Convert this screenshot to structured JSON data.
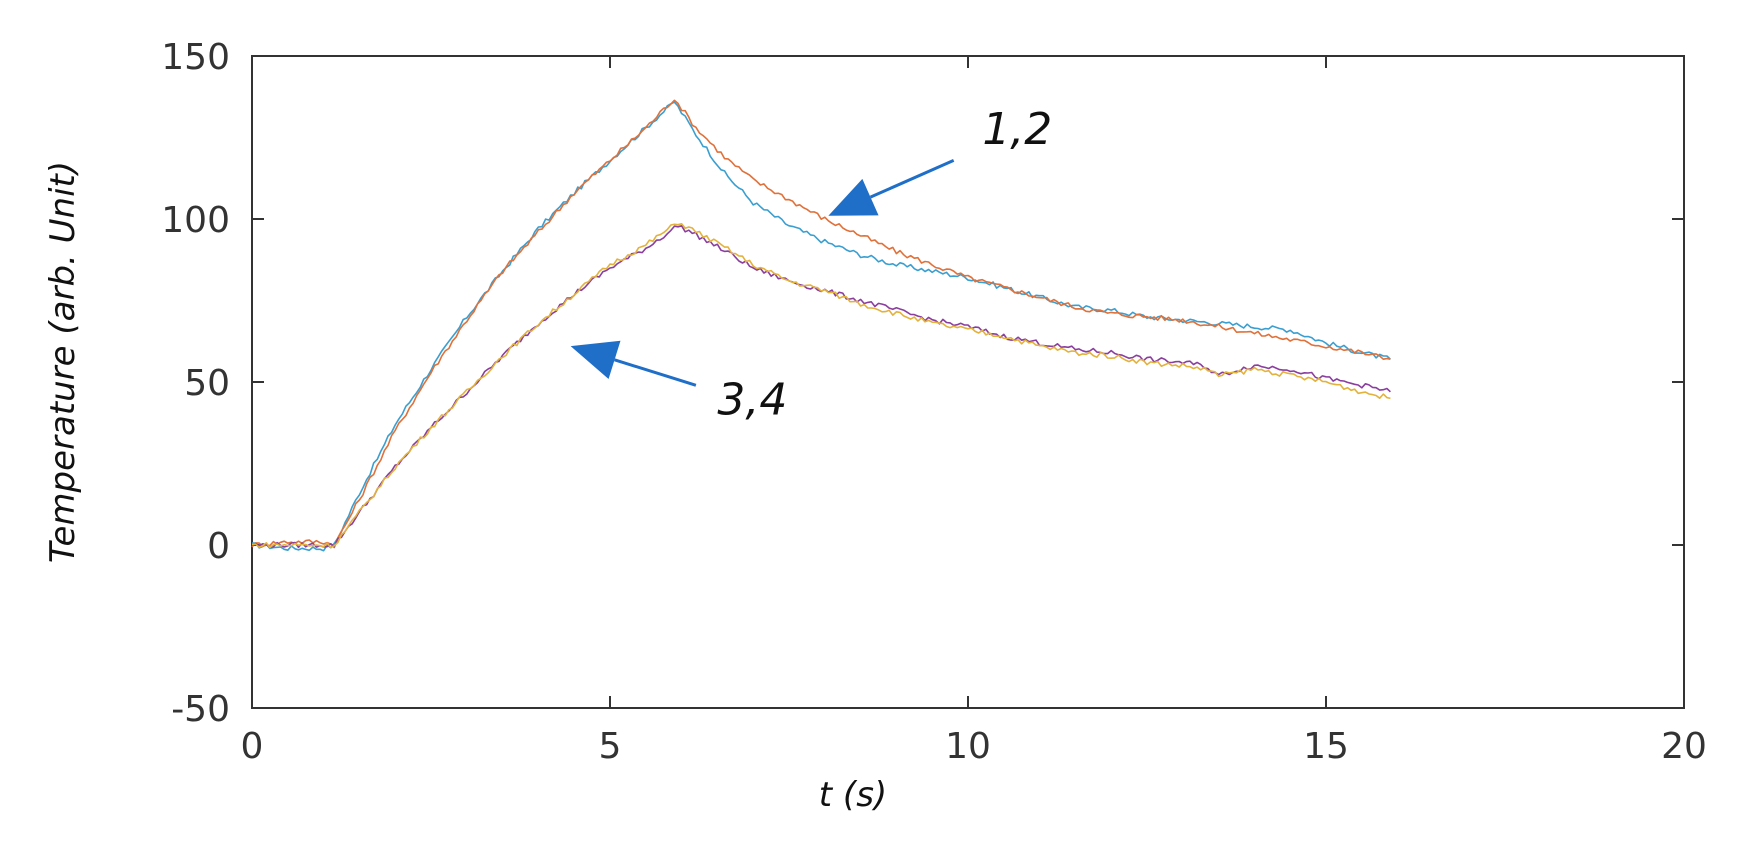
{
  "chart_data": {
    "type": "line",
    "title": "",
    "xlabel": "t (s)",
    "ylabel": "Temperature (arb. Unit)",
    "xlim": [
      0,
      20
    ],
    "ylim": [
      -50,
      150
    ],
    "xticks": [
      0,
      5,
      10,
      15,
      20
    ],
    "yticks": [
      -50,
      0,
      50,
      100,
      150
    ],
    "xtick_labels": [
      "0",
      "5",
      "10",
      "15",
      "20"
    ],
    "ytick_labels": [
      "-50",
      "0",
      "50",
      "100",
      "150"
    ],
    "grid": false,
    "legend": "none",
    "series": [
      {
        "color": "#3a9fd0",
        "x": [
          0,
          0.5,
          1.0,
          1.15,
          1.5,
          2,
          2.5,
          3,
          3.5,
          4,
          4.5,
          5,
          5.5,
          5.9,
          6.2,
          6.6,
          7,
          7.5,
          8,
          8.5,
          9,
          9.5,
          10,
          10.5,
          11,
          11.5,
          12,
          12.5,
          13,
          13.5,
          14,
          14.5,
          15,
          15.5,
          15.9
        ],
        "y": [
          0,
          -1,
          -1,
          0,
          16,
          37,
          54,
          70,
          84,
          97,
          108,
          118,
          128,
          136,
          126,
          114,
          105,
          98,
          93,
          89,
          86,
          84,
          82,
          79,
          76,
          73,
          72,
          70,
          69,
          68,
          67,
          66,
          62,
          59,
          57
        ]
      },
      {
        "color": "#e0713a",
        "x": [
          0,
          0.5,
          1.0,
          1.15,
          1.5,
          2,
          2.5,
          3,
          3.5,
          4,
          4.5,
          5,
          5.5,
          5.9,
          6.2,
          6.6,
          7,
          7.5,
          8,
          8.5,
          9,
          9.5,
          10,
          10.5,
          11,
          11.5,
          12,
          12.5,
          13,
          13.5,
          14,
          14.5,
          15,
          15.5,
          15.9
        ],
        "y": [
          0,
          1,
          1,
          0,
          14,
          35,
          53,
          69,
          84,
          96,
          108,
          118,
          128,
          137,
          128,
          119,
          112,
          106,
          100,
          95,
          90,
          86,
          82,
          79,
          76,
          73,
          71,
          70,
          69,
          67,
          65,
          63,
          61,
          59,
          57
        ]
      },
      {
        "color": "#8a3f9e",
        "x": [
          0,
          0.5,
          1.0,
          1.15,
          1.5,
          2,
          2.5,
          3,
          3.5,
          4,
          4.5,
          5,
          5.5,
          5.95,
          6.3,
          6.7,
          7,
          7.5,
          8,
          8.5,
          9,
          9.5,
          10,
          10.5,
          11,
          11.5,
          12,
          12.5,
          13,
          13.3,
          13.5,
          13.8,
          14,
          14.5,
          15,
          15.5,
          15.9
        ],
        "y": [
          0,
          0,
          0,
          0,
          10,
          24,
          36,
          47,
          58,
          68,
          77,
          85,
          91,
          98,
          94,
          89,
          85,
          81,
          78,
          75,
          72,
          69,
          67,
          64,
          62,
          60,
          59,
          57,
          56,
          55,
          52,
          54,
          55,
          54,
          51,
          49,
          47
        ]
      },
      {
        "color": "#e3b23c",
        "x": [
          0,
          0.5,
          1.0,
          1.15,
          1.5,
          2,
          2.5,
          3,
          3.5,
          4,
          4.5,
          5,
          5.5,
          5.95,
          6.3,
          6.7,
          7,
          7.5,
          8,
          8.5,
          9,
          9.5,
          10,
          10.5,
          11,
          11.5,
          12,
          12.5,
          13,
          13.3,
          13.5,
          13.8,
          14,
          14.5,
          15,
          15.5,
          15.9
        ],
        "y": [
          0,
          0,
          0,
          0,
          10,
          24,
          36,
          47,
          58,
          68,
          77,
          86,
          92,
          99,
          95,
          90,
          86,
          81,
          78,
          74,
          71,
          68,
          66,
          64,
          61,
          59,
          58,
          56,
          55,
          54,
          52,
          53,
          54,
          52,
          50,
          47,
          45
        ]
      }
    ],
    "annotations": [
      {
        "text": "1,2",
        "text_at": [
          10.2,
          123
        ],
        "arrow_from": [
          9.8,
          118
        ],
        "arrow_to": [
          8.05,
          101
        ]
      },
      {
        "text": "3,4",
        "text_at": [
          6.5,
          40
        ],
        "arrow_from": [
          6.2,
          49
        ],
        "arrow_to": [
          4.45,
          61
        ]
      }
    ],
    "annotation_color": "#1f6fc9"
  }
}
